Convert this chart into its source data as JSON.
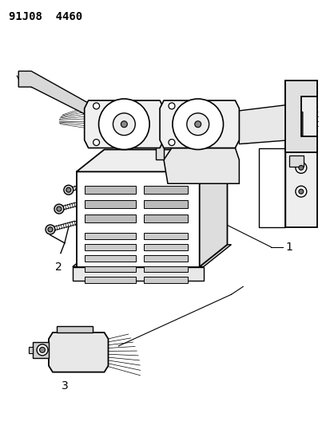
{
  "title": "91J08  4460",
  "background_color": "#ffffff",
  "line_color": "#000000",
  "fig_width": 4.14,
  "fig_height": 5.33,
  "dpi": 100,
  "label_1": "1",
  "label_2": "2",
  "label_3": "3"
}
